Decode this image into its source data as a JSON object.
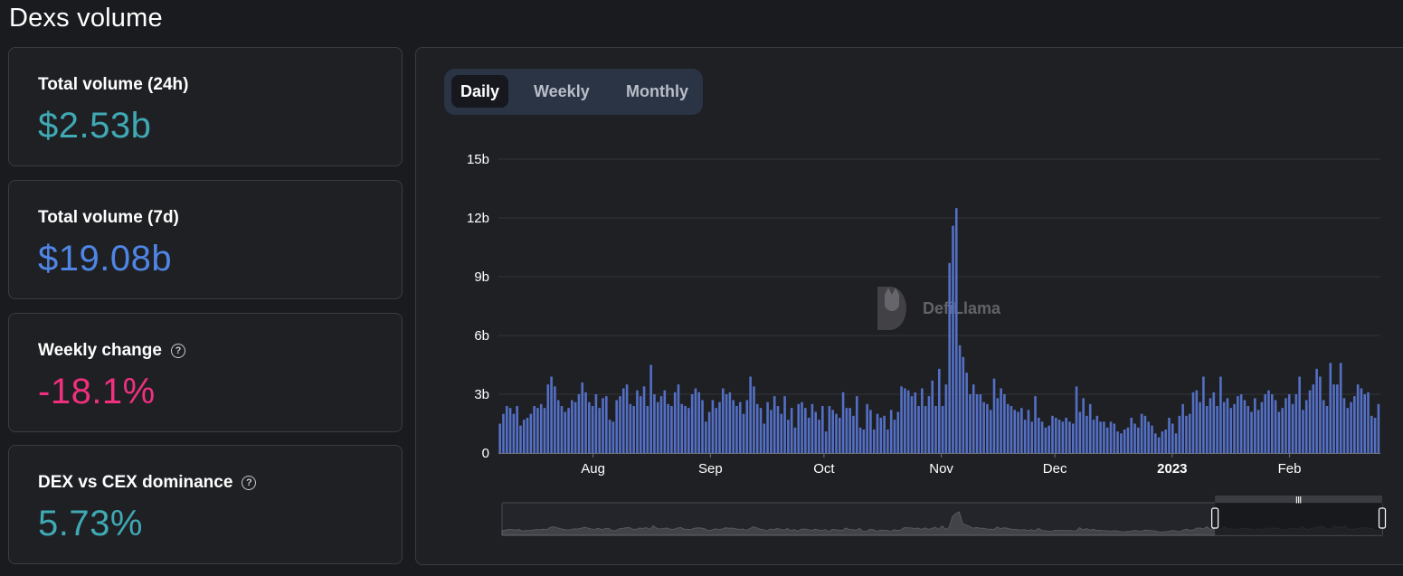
{
  "page": {
    "title": "Dexs volume"
  },
  "stats": [
    {
      "label": "Total volume (24h)",
      "value": "$2.53b",
      "color": "#3fa9b4",
      "help": false
    },
    {
      "label": "Total volume (7d)",
      "value": "$19.08b",
      "color": "#4f86e5",
      "help": false
    },
    {
      "label": "Weekly change",
      "value": "-18.1%",
      "color": "#f0307f",
      "help": true
    },
    {
      "label": "DEX vs CEX dominance",
      "value": "5.73%",
      "color": "#3fa9b4",
      "help": true
    }
  ],
  "help_icon_glyph": "?",
  "toggles": [
    {
      "label": "Daily",
      "active": true
    },
    {
      "label": "Weekly",
      "active": false
    },
    {
      "label": "Monthly",
      "active": false
    }
  ],
  "watermark": {
    "text": "DefiLlama",
    "icon": "llama-logo-icon"
  },
  "chart_data": {
    "type": "bar",
    "bar_color": "#5470c6",
    "x_axis": {
      "type": "date",
      "start": "2022-07-07",
      "end": "2023-02-25",
      "tick_labels": [
        "Aug",
        "Sep",
        "Oct",
        "Nov",
        "Dec",
        "2023",
        "Feb"
      ],
      "tick_dates": [
        "2022-08-01",
        "2022-09-01",
        "2022-10-01",
        "2022-11-01",
        "2022-12-01",
        "2023-01-01",
        "2023-02-01"
      ]
    },
    "y_axis": {
      "min": 0,
      "max": 15,
      "unit": "b",
      "tick_labels": [
        "0",
        "3b",
        "6b",
        "9b",
        "12b",
        "15b"
      ],
      "tick_values": [
        0,
        3,
        6,
        9,
        12,
        15
      ]
    },
    "grid": true,
    "values": [
      1.5,
      2.0,
      2.4,
      2.3,
      2.0,
      2.4,
      1.4,
      1.7,
      1.8,
      2.0,
      2.4,
      2.3,
      2.5,
      2.3,
      3.5,
      3.9,
      3.4,
      2.7,
      2.4,
      2.1,
      2.3,
      2.7,
      2.6,
      3.0,
      3.6,
      3.1,
      2.6,
      2.4,
      3.0,
      2.3,
      2.8,
      2.9,
      1.7,
      1.6,
      2.7,
      2.9,
      3.3,
      3.5,
      2.5,
      2.4,
      3.2,
      2.9,
      3.4,
      2.4,
      4.5,
      3.0,
      2.6,
      2.9,
      3.2,
      2.5,
      2.4,
      3.1,
      3.5,
      2.5,
      2.4,
      2.3,
      3.0,
      3.3,
      3.1,
      2.7,
      1.6,
      2.1,
      2.7,
      2.3,
      2.6,
      3.3,
      3.0,
      3.1,
      2.7,
      2.4,
      2.6,
      2.0,
      2.7,
      3.9,
      3.4,
      2.5,
      2.3,
      1.5,
      2.6,
      2.2,
      2.9,
      2.4,
      2.0,
      2.9,
      1.7,
      2.3,
      1.3,
      2.5,
      2.6,
      2.3,
      1.8,
      2.5,
      2.1,
      1.7,
      2.4,
      1.1,
      2.4,
      2.2,
      2.0,
      1.8,
      3.1,
      2.3,
      2.3,
      1.9,
      2.9,
      1.3,
      1.2,
      2.5,
      2.2,
      1.2,
      2.0,
      1.8,
      1.9,
      1.2,
      2.2,
      1.7,
      2.1,
      3.4,
      3.3,
      3.2,
      2.9,
      3.1,
      2.4,
      3.3,
      2.4,
      2.9,
      3.7,
      2.4,
      4.3,
      2.4,
      3.5,
      9.7,
      11.6,
      12.5,
      5.5,
      4.9,
      4.1,
      3.0,
      3.5,
      3.0,
      3.0,
      2.6,
      2.5,
      2.2,
      3.8,
      2.8,
      3.3,
      3.0,
      2.5,
      2.4,
      2.2,
      2.1,
      2.3,
      1.7,
      2.2,
      1.6,
      2.9,
      1.8,
      1.6,
      1.3,
      1.4,
      1.9,
      1.8,
      1.7,
      1.6,
      1.8,
      1.6,
      1.5,
      3.4,
      2.1,
      2.8,
      1.9,
      2.5,
      1.7,
      1.9,
      1.6,
      1.6,
      1.3,
      1.6,
      1.5,
      1.1,
      1.0,
      1.2,
      1.3,
      1.8,
      1.5,
      1.3,
      2.0,
      1.9,
      1.6,
      1.4,
      1.0,
      0.8,
      1.1,
      1.2,
      1.8,
      1.5,
      1.0,
      1.9,
      2.5,
      1.9,
      2.0,
      3.1,
      3.2,
      2.6,
      3.9,
      2.4,
      2.8,
      3.1,
      2.4,
      3.9,
      2.6,
      2.8,
      2.3,
      2.5,
      2.9,
      3.0,
      2.7,
      2.4,
      2.1,
      2.8,
      2.2,
      2.6,
      3.0,
      3.2,
      3.0,
      2.7,
      2.1,
      2.3,
      2.8,
      3.0,
      2.5,
      3.0,
      3.9,
      2.2,
      2.7,
      3.2,
      3.5,
      4.3,
      3.9,
      2.7,
      2.4,
      4.6,
      3.5,
      3.5,
      4.6,
      2.8,
      2.3,
      2.6,
      2.9,
      3.5,
      3.3,
      3.0,
      3.1,
      1.9,
      1.8,
      2.5
    ],
    "range_slider": {
      "start_fraction": 0.81,
      "end_fraction": 1.0,
      "handle_glyph": "|||"
    }
  }
}
